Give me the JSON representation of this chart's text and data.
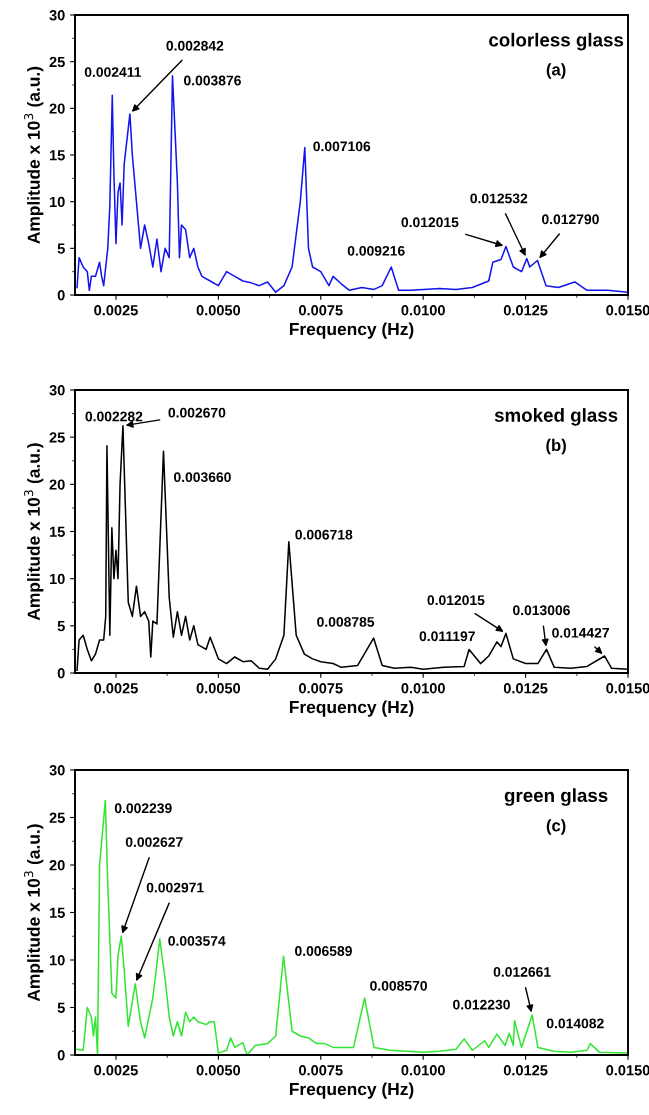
{
  "chart_data": [
    {
      "type": "line",
      "xlabel": "Frequency (Hz)",
      "ylabel": "Amplitude x 10$^{3}$ (a.u.)",
      "xlim": [
        0.0015,
        0.015
      ],
      "ylim": [
        0,
        30
      ],
      "xticks": [
        0.0025,
        {
          "value": 0.005,
          "label": "0.0050"
        },
        0.0075,
        {
          "value": 0.01,
          "label": "0.0100"
        },
        0.0125,
        {
          "value": 0.015,
          "label": "0.0150"
        }
      ],
      "yticks": [
        0,
        5,
        10,
        15,
        20,
        25,
        30
      ],
      "x": [
        0.00155,
        0.0016,
        0.0017,
        0.0018,
        0.00185,
        0.0019,
        0.002,
        0.0021,
        0.00215,
        0.0022,
        0.0023,
        0.00235,
        0.00241,
        0.00245,
        0.0025,
        0.00255,
        0.0026,
        0.00265,
        0.0027,
        0.00284,
        0.0029,
        0.003,
        0.0031,
        0.0032,
        0.0033,
        0.0034,
        0.0035,
        0.0036,
        0.0037,
        0.0038,
        0.00388,
        0.004,
        0.00405,
        0.0041,
        0.0042,
        0.0043,
        0.0044,
        0.0045,
        0.0046,
        0.0048,
        0.005,
        0.0052,
        0.0054,
        0.0056,
        0.0058,
        0.006,
        0.0062,
        0.0064,
        0.0066,
        0.0068,
        0.007,
        0.00711,
        0.0072,
        0.0073,
        0.0075,
        0.0077,
        0.0078,
        0.008,
        0.0082,
        0.0085,
        0.0088,
        0.009,
        0.00922,
        0.0094,
        0.0097,
        0.01,
        0.0104,
        0.0108,
        0.0112,
        0.0116,
        0.0117,
        0.0119,
        0.01202,
        0.0122,
        0.0124,
        0.01253,
        0.0126,
        0.01279,
        0.013,
        0.0133,
        0.0137,
        0.014,
        0.0145,
        0.015
      ],
      "series": [
        {
          "color": "#1414f0",
          "values": [
            0.8,
            4,
            3,
            2.5,
            0.5,
            2,
            2,
            3.5,
            2,
            1,
            5,
            9.5,
            21.4,
            13,
            5.5,
            11,
            12,
            7.5,
            14,
            19.4,
            15,
            10,
            5,
            7.5,
            5.5,
            3,
            6,
            2.5,
            5,
            4,
            23.5,
            12,
            4,
            7.5,
            7,
            4,
            5,
            3,
            2,
            1.5,
            1,
            2.5,
            2,
            1.5,
            1.3,
            1,
            1.4,
            0.3,
            1,
            3,
            10,
            15.8,
            5,
            3,
            2.5,
            1,
            2,
            1.2,
            0.5,
            0.8,
            0.6,
            1,
            3,
            0.5,
            0.5,
            0.6,
            0.7,
            0.6,
            0.8,
            1.5,
            3.5,
            3.8,
            5.2,
            3,
            2.5,
            3.9,
            3,
            3.7,
            1,
            0.8,
            1.4,
            0.5,
            0.5,
            0.3
          ]
        }
      ],
      "annotations": [
        "colorless glass",
        "(a)",
        {
          "text": "0.002411",
          "x": 0.00241,
          "y": 21.4
        },
        {
          "text": "0.002842",
          "x": 0.00284,
          "y": 19.4
        },
        {
          "text": "0.003876",
          "x": 0.00388,
          "y": 23.5
        },
        {
          "text": "0.007106",
          "x": 0.00711,
          "y": 15.8
        },
        {
          "text": "0.009216",
          "x": 0.00922,
          "y": 3
        },
        {
          "text": "0.012015",
          "x": 0.01202,
          "y": 5.2
        },
        {
          "text": "0.012532",
          "x": 0.01253,
          "y": 3.9
        },
        {
          "text": "0.012790",
          "x": 0.01279,
          "y": 3.7
        }
      ]
    },
    {
      "type": "line",
      "xlabel": "Frequency (Hz)",
      "ylabel": "Amplitude x 10$^{3}$ (a.u.)",
      "xlim": [
        0.0015,
        0.015
      ],
      "ylim": [
        0,
        30
      ],
      "xticks": [
        0.0025,
        {
          "value": 0.005,
          "label": "0.0050"
        },
        0.0075,
        {
          "value": 0.01,
          "label": "0.0100"
        },
        0.0125,
        {
          "value": 0.015,
          "label": "0.0150"
        }
      ],
      "yticks": [
        0,
        5,
        10,
        15,
        20,
        25,
        30
      ],
      "x": [
        0.00155,
        0.0016,
        0.0017,
        0.0018,
        0.0019,
        0.002,
        0.0021,
        0.0022,
        0.00225,
        0.00228,
        0.00235,
        0.0024,
        0.00245,
        0.0025,
        0.00255,
        0.0026,
        0.00267,
        0.0028,
        0.0029,
        0.003,
        0.0031,
        0.0032,
        0.0033,
        0.00335,
        0.0034,
        0.0035,
        0.00366,
        0.0038,
        0.0039,
        0.004,
        0.0041,
        0.0042,
        0.0043,
        0.0044,
        0.0045,
        0.0047,
        0.0048,
        0.005,
        0.0052,
        0.0054,
        0.0056,
        0.0058,
        0.006,
        0.0062,
        0.0064,
        0.0066,
        0.00672,
        0.0069,
        0.0071,
        0.0073,
        0.0075,
        0.0078,
        0.008,
        0.0084,
        0.00879,
        0.009,
        0.0093,
        0.0097,
        0.01,
        0.0105,
        0.011,
        0.01112,
        0.0114,
        0.0116,
        0.0118,
        0.0119,
        0.01202,
        0.0122,
        0.0125,
        0.0128,
        0.01301,
        0.0132,
        0.0136,
        0.014,
        0.01443,
        0.0146,
        0.015
      ],
      "series": [
        {
          "color": "#000000",
          "values": [
            0.3,
            3.5,
            4,
            2.5,
            1.3,
            2,
            3.5,
            3.5,
            6,
            24.1,
            4,
            15.4,
            10,
            13,
            10,
            20,
            26.2,
            7.5,
            6,
            9.2,
            6,
            6.5,
            5.5,
            1.7,
            5.5,
            5.2,
            23.5,
            8,
            3.8,
            6.5,
            4,
            6,
            3.5,
            5,
            3,
            2.5,
            3.8,
            1.5,
            1,
            1.7,
            1.2,
            1.3,
            0.5,
            0.4,
            1.5,
            4,
            13.9,
            4,
            2,
            1.5,
            1.2,
            1,
            0.6,
            0.8,
            3.7,
            0.8,
            0.5,
            0.6,
            0.4,
            0.6,
            0.7,
            2.5,
            1,
            1.8,
            3.3,
            2.8,
            4.2,
            1.5,
            1,
            1,
            2.5,
            0.6,
            0.5,
            0.7,
            1.8,
            0.5,
            0.4
          ]
        }
      ],
      "annotations": [
        "smoked glass",
        "(b)",
        {
          "text": "0.002282",
          "x": 0.00228,
          "y": 24.1
        },
        {
          "text": "0.002670",
          "x": 0.00267,
          "y": 26.2
        },
        {
          "text": "0.003660",
          "x": 0.00366,
          "y": 23.5
        },
        {
          "text": "0.006718",
          "x": 0.00672,
          "y": 13.9
        },
        {
          "text": "0.008785",
          "x": 0.00879,
          "y": 3.7
        },
        {
          "text": "0.011197",
          "x": 0.01112,
          "y": 2.5
        },
        {
          "text": "0.012015",
          "x": 0.01202,
          "y": 4.2
        },
        {
          "text": "0.013006",
          "x": 0.01301,
          "y": 2.5
        },
        {
          "text": "0.014427",
          "x": 0.01443,
          "y": 1.8
        }
      ]
    },
    {
      "type": "line",
      "xlabel": "Frequency (Hz)",
      "ylabel": "Amplitude x 10$^{3}$ (a.u.)",
      "xlim": [
        0.0015,
        0.015
      ],
      "ylim": [
        0,
        30
      ],
      "xticks": [
        0.0025,
        {
          "value": 0.005,
          "label": "0.0050"
        },
        0.0075,
        {
          "value": 0.01,
          "label": "0.0100"
        },
        0.0125,
        {
          "value": 0.015,
          "label": "0.0150"
        }
      ],
      "yticks": [
        0,
        5,
        10,
        15,
        20,
        25,
        30
      ],
      "x": [
        0.00155,
        0.0017,
        0.0018,
        0.0019,
        0.00195,
        0.002,
        0.00205,
        0.0021,
        0.00224,
        0.0023,
        0.0024,
        0.0025,
        0.00255,
        0.00263,
        0.0027,
        0.0028,
        0.00297,
        0.0031,
        0.0032,
        0.0034,
        0.00357,
        0.0037,
        0.0038,
        0.0039,
        0.004,
        0.0041,
        0.0042,
        0.0043,
        0.0044,
        0.0045,
        0.0047,
        0.0048,
        0.0049,
        0.005,
        0.0052,
        0.0053,
        0.0054,
        0.0056,
        0.0057,
        0.0059,
        0.0062,
        0.0064,
        0.00659,
        0.0068,
        0.007,
        0.0072,
        0.0074,
        0.0076,
        0.0078,
        0.008,
        0.0083,
        0.00857,
        0.0088,
        0.0092,
        0.0096,
        0.01,
        0.0104,
        0.0108,
        0.011,
        0.0112,
        0.0115,
        0.0116,
        0.0118,
        0.012,
        0.0121,
        0.0122,
        0.01223,
        0.0124,
        0.01266,
        0.0128,
        0.0132,
        0.0136,
        0.014,
        0.01408,
        0.0143,
        0.015
      ],
      "series": [
        {
          "color": "#33e533",
          "values": [
            0.6,
            0.5,
            5,
            4,
            2,
            4,
            0,
            20,
            26.8,
            18,
            6.5,
            6,
            10.5,
            12.5,
            9,
            3,
            7.5,
            3.5,
            1.8,
            6,
            12.2,
            8,
            4,
            2,
            3.5,
            2,
            4.5,
            3.5,
            4,
            3.5,
            3.2,
            3.5,
            3.5,
            0.2,
            0.5,
            1.8,
            0.8,
            1.3,
            0,
            1,
            1.2,
            2,
            10.4,
            2.5,
            2,
            1.8,
            1.2,
            1.2,
            0.8,
            0.8,
            0.8,
            6,
            0.8,
            0.5,
            0.4,
            0.3,
            0.4,
            0.6,
            1.7,
            0.5,
            1.5,
            0.8,
            2.2,
            1,
            2.3,
            1,
            3.6,
            0.8,
            4.2,
            0.8,
            0.4,
            0.3,
            0.5,
            1.2,
            0.3,
            0.2
          ]
        }
      ],
      "annotations": [
        "green glass",
        "(c)",
        {
          "text": "0.002239",
          "x": 0.00224,
          "y": 26.8
        },
        {
          "text": "0.002627",
          "x": 0.00263,
          "y": 12.5
        },
        {
          "text": "0.002971",
          "x": 0.00297,
          "y": 7.5
        },
        {
          "text": "0.003574",
          "x": 0.00357,
          "y": 12.2
        },
        {
          "text": "0.006589",
          "x": 0.00659,
          "y": 10.4
        },
        {
          "text": "0.008570",
          "x": 0.00857,
          "y": 6
        },
        {
          "text": "0.012230",
          "x": 0.01223,
          "y": 3.6
        },
        {
          "text": "0.012661",
          "x": 0.01266,
          "y": 4.2
        },
        {
          "text": "0.014082",
          "x": 0.01408,
          "y": 1.2
        }
      ]
    }
  ]
}
